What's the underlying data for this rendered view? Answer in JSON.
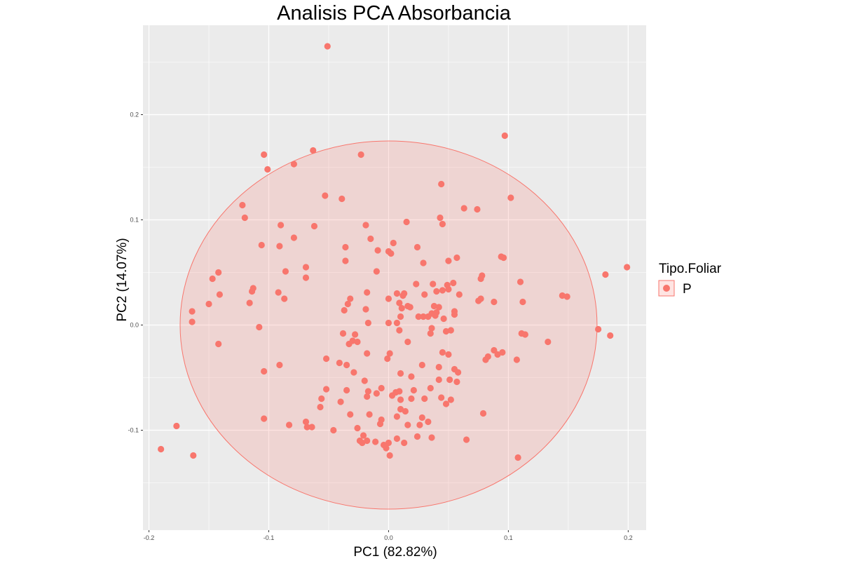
{
  "chart_data": {
    "type": "scatter",
    "title": "Analisis PCA Absorbancia",
    "xlabel": "PC1 (82.82%)",
    "ylabel": "PC2 (14.07%)",
    "xlim": [
      -0.205,
      0.215
    ],
    "ylim": [
      -0.195,
      0.285
    ],
    "x_ticks": [
      -0.2,
      -0.1,
      0.0,
      0.1,
      0.2
    ],
    "x_tick_labels": [
      "-0.2",
      "-0.1",
      "0.0",
      "0.1",
      "0.2"
    ],
    "y_ticks": [
      -0.1,
      0.0,
      0.1,
      0.2
    ],
    "y_tick_labels": [
      "-0.1",
      "0.0",
      "0.1",
      "0.2"
    ],
    "grid": true,
    "legend": {
      "title": "Tipo.Foliar",
      "placement": "right",
      "entries": [
        {
          "label": "P",
          "color": "#F8766D"
        }
      ]
    },
    "ellipse": {
      "center": [
        0.0,
        0.0
      ],
      "radius_x": 0.174,
      "radius_y": 0.175,
      "fill": "#F8766D",
      "fill_opacity": 0.2,
      "stroke": "#F8766D"
    },
    "series": [
      {
        "name": "P",
        "color": "#F8766D",
        "points": [
          [
            -0.051,
            0.265
          ],
          [
            0.097,
            0.18
          ],
          [
            -0.063,
            0.166
          ],
          [
            -0.104,
            0.162
          ],
          [
            -0.023,
            0.162
          ],
          [
            -0.079,
            0.153
          ],
          [
            -0.101,
            0.148
          ],
          [
            0.044,
            0.134
          ],
          [
            -0.053,
            0.123
          ],
          [
            -0.039,
            0.12
          ],
          [
            0.102,
            0.121
          ],
          [
            -0.122,
            0.114
          ],
          [
            0.063,
            0.111
          ],
          [
            0.074,
            0.11
          ],
          [
            -0.12,
            0.102
          ],
          [
            0.043,
            0.102
          ],
          [
            0.015,
            0.098
          ],
          [
            -0.09,
            0.095
          ],
          [
            -0.062,
            0.094
          ],
          [
            0.045,
            0.096
          ],
          [
            -0.019,
            0.095
          ],
          [
            -0.079,
            0.083
          ],
          [
            -0.015,
            0.082
          ],
          [
            0.004,
            0.078
          ],
          [
            -0.106,
            0.076
          ],
          [
            -0.091,
            0.075
          ],
          [
            -0.036,
            0.074
          ],
          [
            0.024,
            0.074
          ],
          [
            -0.009,
            0.071
          ],
          [
            0.0,
            0.07
          ],
          [
            0.002,
            0.068
          ],
          [
            0.094,
            0.065
          ],
          [
            0.096,
            0.064
          ],
          [
            0.057,
            0.064
          ],
          [
            0.05,
            0.061
          ],
          [
            -0.036,
            0.061
          ],
          [
            0.029,
            0.059
          ],
          [
            -0.069,
            0.055
          ],
          [
            -0.086,
            0.051
          ],
          [
            -0.01,
            0.051
          ],
          [
            -0.142,
            0.05
          ],
          [
            0.181,
            0.048
          ],
          [
            0.199,
            0.055
          ],
          [
            0.078,
            0.047
          ],
          [
            -0.147,
            0.044
          ],
          [
            -0.069,
            0.045
          ],
          [
            0.077,
            0.044
          ],
          [
            0.11,
            0.041
          ],
          [
            0.037,
            0.039
          ],
          [
            0.023,
            0.039
          ],
          [
            0.054,
            0.04
          ],
          [
            -0.113,
            0.035
          ],
          [
            0.049,
            0.038
          ],
          [
            0.007,
            0.03
          ],
          [
            0.05,
            0.034
          ],
          [
            0.045,
            0.033
          ],
          [
            -0.114,
            0.032
          ],
          [
            -0.018,
            0.031
          ],
          [
            0.059,
            0.029
          ],
          [
            0.03,
            0.029
          ],
          [
            0.012,
            0.028
          ],
          [
            0.013,
            0.03
          ],
          [
            -0.092,
            0.031
          ],
          [
            0.04,
            0.032
          ],
          [
            -0.141,
            0.029
          ],
          [
            0.145,
            0.028
          ],
          [
            0.149,
            0.027
          ],
          [
            -0.087,
            0.025
          ],
          [
            -0.032,
            0.025
          ],
          [
            0.075,
            0.023
          ],
          [
            0.077,
            0.025
          ],
          [
            0.112,
            0.022
          ],
          [
            0.088,
            0.022
          ],
          [
            0.0,
            0.025
          ],
          [
            0.009,
            0.021
          ],
          [
            -0.116,
            0.021
          ],
          [
            -0.034,
            0.02
          ],
          [
            -0.15,
            0.02
          ],
          [
            0.016,
            0.018
          ],
          [
            0.038,
            0.018
          ],
          [
            0.042,
            0.017
          ],
          [
            0.011,
            0.016
          ],
          [
            0.018,
            0.017
          ],
          [
            -0.019,
            0.015
          ],
          [
            0.055,
            0.013
          ],
          [
            -0.037,
            0.014
          ],
          [
            0.036,
            0.011
          ],
          [
            0.04,
            0.012
          ],
          [
            -0.164,
            0.013
          ],
          [
            0.025,
            0.008
          ],
          [
            0.033,
            0.008
          ],
          [
            0.039,
            0.009
          ],
          [
            0.055,
            0.01
          ],
          [
            0.046,
            0.006
          ],
          [
            0.029,
            0.008
          ],
          [
            0.01,
            0.008
          ],
          [
            -0.017,
            0.002
          ],
          [
            0.0,
            0.002
          ],
          [
            -0.164,
            0.003
          ],
          [
            -0.108,
            -0.002
          ],
          [
            0.007,
            0.002
          ],
          [
            0.185,
            -0.01
          ],
          [
            0.175,
            -0.004
          ],
          [
            0.036,
            -0.003
          ],
          [
            0.009,
            -0.005
          ],
          [
            0.035,
            -0.008
          ],
          [
            -0.038,
            -0.008
          ],
          [
            -0.028,
            -0.009
          ],
          [
            0.114,
            -0.009
          ],
          [
            0.052,
            -0.005
          ],
          [
            0.048,
            -0.006
          ],
          [
            0.111,
            -0.008
          ],
          [
            0.016,
            -0.016
          ],
          [
            -0.03,
            -0.015
          ],
          [
            -0.142,
            -0.018
          ],
          [
            0.133,
            -0.016
          ],
          [
            -0.026,
            -0.016
          ],
          [
            -0.033,
            -0.018
          ],
          [
            0.088,
            -0.024
          ],
          [
            0.095,
            -0.026
          ],
          [
            0.091,
            -0.028
          ],
          [
            0.083,
            -0.03
          ],
          [
            0.045,
            -0.026
          ],
          [
            -0.018,
            -0.027
          ],
          [
            0.001,
            -0.027
          ],
          [
            0.081,
            -0.033
          ],
          [
            0.05,
            -0.028
          ],
          [
            0.107,
            -0.033
          ],
          [
            -0.052,
            -0.032
          ],
          [
            -0.001,
            -0.032
          ],
          [
            -0.041,
            -0.036
          ],
          [
            0.028,
            -0.038
          ],
          [
            -0.035,
            -0.038
          ],
          [
            -0.091,
            -0.038
          ],
          [
            0.042,
            -0.04
          ],
          [
            -0.104,
            -0.044
          ],
          [
            0.055,
            -0.042
          ],
          [
            0.058,
            -0.045
          ],
          [
            -0.029,
            -0.045
          ],
          [
            0.01,
            -0.046
          ],
          [
            0.019,
            -0.049
          ],
          [
            0.042,
            -0.052
          ],
          [
            0.051,
            -0.052
          ],
          [
            -0.02,
            -0.053
          ],
          [
            0.057,
            -0.054
          ],
          [
            -0.052,
            -0.061
          ],
          [
            -0.006,
            -0.06
          ],
          [
            -0.035,
            -0.062
          ],
          [
            -0.017,
            -0.063
          ],
          [
            0.035,
            -0.06
          ],
          [
            0.021,
            -0.062
          ],
          [
            0.009,
            -0.063
          ],
          [
            0.006,
            -0.064
          ],
          [
            -0.01,
            -0.065
          ],
          [
            0.003,
            -0.067
          ],
          [
            -0.018,
            -0.068
          ],
          [
            0.044,
            -0.069
          ],
          [
            -0.056,
            -0.07
          ],
          [
            0.03,
            -0.07
          ],
          [
            0.019,
            -0.07
          ],
          [
            0.01,
            -0.071
          ],
          [
            0.052,
            -0.071
          ],
          [
            -0.04,
            -0.073
          ],
          [
            0.048,
            -0.075
          ],
          [
            0.01,
            -0.08
          ],
          [
            -0.057,
            -0.078
          ],
          [
            0.014,
            -0.082
          ],
          [
            0.079,
            -0.084
          ],
          [
            -0.032,
            -0.085
          ],
          [
            -0.016,
            -0.085
          ],
          [
            0.007,
            -0.087
          ],
          [
            0.028,
            -0.088
          ],
          [
            -0.069,
            -0.092
          ],
          [
            -0.006,
            -0.09
          ],
          [
            -0.104,
            -0.089
          ],
          [
            -0.083,
            -0.095
          ],
          [
            0.033,
            -0.092
          ],
          [
            -0.068,
            -0.097
          ],
          [
            0.026,
            -0.095
          ],
          [
            -0.064,
            -0.097
          ],
          [
            -0.177,
            -0.096
          ],
          [
            -0.007,
            -0.094
          ],
          [
            0.016,
            -0.095
          ],
          [
            -0.026,
            -0.098
          ],
          [
            -0.046,
            -0.1
          ],
          [
            -0.021,
            -0.105
          ],
          [
            0.024,
            -0.106
          ],
          [
            0.036,
            -0.107
          ],
          [
            0.007,
            -0.108
          ],
          [
            0.065,
            -0.109
          ],
          [
            -0.018,
            -0.11
          ],
          [
            -0.024,
            -0.11
          ],
          [
            -0.022,
            -0.112
          ],
          [
            -0.011,
            -0.111
          ],
          [
            0.0,
            -0.112
          ],
          [
            0.013,
            -0.112
          ],
          [
            -0.19,
            -0.118
          ],
          [
            0.001,
            -0.124
          ],
          [
            -0.002,
            -0.117
          ],
          [
            -0.163,
            -0.124
          ],
          [
            0.108,
            -0.126
          ],
          [
            -0.004,
            -0.114
          ]
        ]
      }
    ]
  }
}
